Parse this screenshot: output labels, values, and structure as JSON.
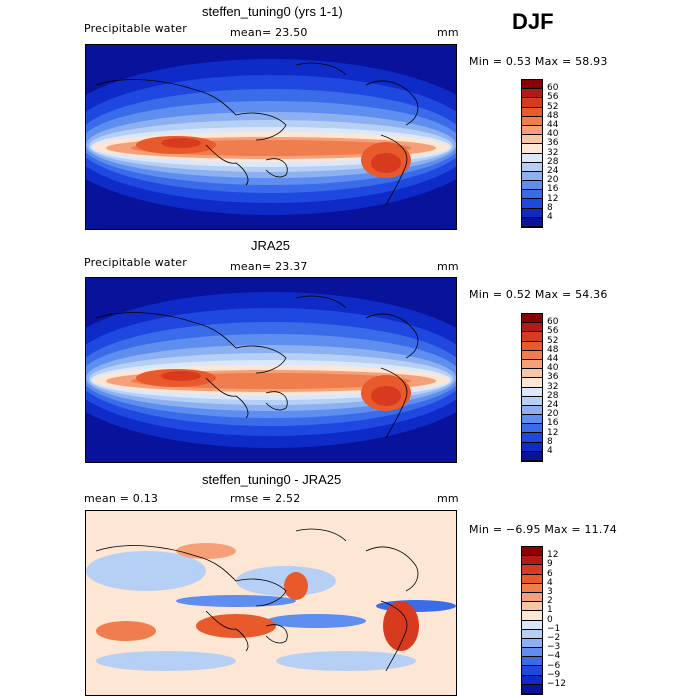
{
  "season": "DJF",
  "panels": [
    {
      "title": "steffen_tuning0 (yrs 1-1)",
      "variable": "Precipitable water",
      "stat1": "mean=   23.50",
      "units": "mm",
      "minmax": "Min =    0.53  Max =   58.93",
      "scheme": "field"
    },
    {
      "title": "JRA25",
      "variable": "Precipitable water",
      "stat1": "mean=   23.37",
      "units": "mm",
      "minmax": "Min =    0.52  Max =   54.36",
      "scheme": "field"
    },
    {
      "title": "steffen_tuning0 - JRA25",
      "variable": "mean =    0.13",
      "stat1": "rmse =    2.52",
      "units": "mm",
      "minmax": "Min =  −6.95  Max =   11.74",
      "scheme": "diff"
    }
  ],
  "colorbars": {
    "field": {
      "labels": [
        "60",
        "56",
        "52",
        "48",
        "44",
        "40",
        "36",
        "32",
        "28",
        "24",
        "20",
        "16",
        "12",
        "8",
        "4"
      ],
      "colors": [
        "#8b0000",
        "#b01c14",
        "#d73a1e",
        "#e85a2c",
        "#f07d4e",
        "#f5a078",
        "#f9c6a4",
        "#fde6d3",
        "#dbe8fb",
        "#b6cff5",
        "#8cb0f0",
        "#5e8ef0",
        "#3a6ce9",
        "#1f48e0",
        "#0e2bc8",
        "#08129a"
      ]
    },
    "diff": {
      "labels": [
        "12",
        "9",
        "6",
        "4",
        "3",
        "2",
        "1",
        "0",
        "−1",
        "−2",
        "−3",
        "−4",
        "−6",
        "−9",
        "−12"
      ],
      "colors": [
        "#8b0000",
        "#b01c14",
        "#d73a1e",
        "#e85a2c",
        "#f07d4e",
        "#f5a078",
        "#f9c6a4",
        "#fde6d3",
        "#dbe8fb",
        "#b6cff5",
        "#8cb0f0",
        "#5e8ef0",
        "#3a6ce9",
        "#1f48e0",
        "#0e2bc8",
        "#08129a"
      ]
    }
  },
  "chart_data": [
    {
      "type": "heatmap",
      "title": "steffen_tuning0 (yrs 1-1)",
      "variable": "Precipitable water",
      "units": "mm",
      "mean": 23.5,
      "min": 0.53,
      "max": 58.93,
      "contour_levels": [
        4,
        8,
        12,
        16,
        20,
        24,
        28,
        32,
        36,
        40,
        44,
        48,
        52,
        56,
        60
      ]
    },
    {
      "type": "heatmap",
      "title": "JRA25",
      "variable": "Precipitable water",
      "units": "mm",
      "mean": 23.37,
      "min": 0.52,
      "max": 54.36,
      "contour_levels": [
        4,
        8,
        12,
        16,
        20,
        24,
        28,
        32,
        36,
        40,
        44,
        48,
        52,
        56,
        60
      ]
    },
    {
      "type": "heatmap",
      "title": "steffen_tuning0 - JRA25",
      "units": "mm",
      "mean": 0.13,
      "rmse": 2.52,
      "min": -6.95,
      "max": 11.74,
      "contour_levels": [
        -12,
        -9,
        -6,
        -4,
        -3,
        -2,
        -1,
        0,
        1,
        2,
        3,
        4,
        6,
        9,
        12
      ]
    }
  ]
}
